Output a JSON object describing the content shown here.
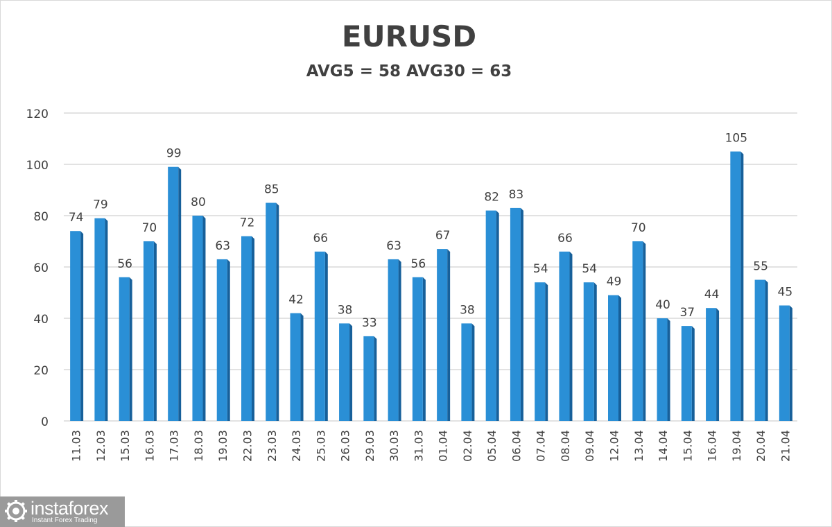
{
  "chart_data": {
    "type": "bar",
    "title": "EURUSD",
    "subtitle": "AVG5 = 58 AVG30 = 63",
    "categories": [
      "11.03",
      "12.03",
      "15.03",
      "16.03",
      "17.03",
      "18.03",
      "19.03",
      "22.03",
      "23.03",
      "24.03",
      "25.03",
      "26.03",
      "29.03",
      "30.03",
      "31.03",
      "01.04",
      "02.04",
      "05.04",
      "06.04",
      "07.04",
      "08.04",
      "09.04",
      "12.04",
      "13.04",
      "14.04",
      "15.04",
      "16.04",
      "19.04",
      "20.04",
      "21.04"
    ],
    "values": [
      74,
      79,
      56,
      70,
      99,
      80,
      63,
      72,
      85,
      42,
      66,
      38,
      33,
      63,
      56,
      67,
      38,
      82,
      83,
      54,
      66,
      54,
      49,
      70,
      40,
      37,
      44,
      105,
      55,
      45
    ],
    "ylim": [
      0,
      120
    ],
    "yticks": [
      0,
      20,
      40,
      60,
      80,
      100,
      120
    ],
    "grid": true,
    "colors": {
      "bar": "#2a8fd6",
      "bar_dark": "#17609a",
      "grid": "#d9d9d9",
      "text": "#404040"
    }
  },
  "brand": {
    "name": "instaforex",
    "tagline": "Instant Forex Trading"
  }
}
